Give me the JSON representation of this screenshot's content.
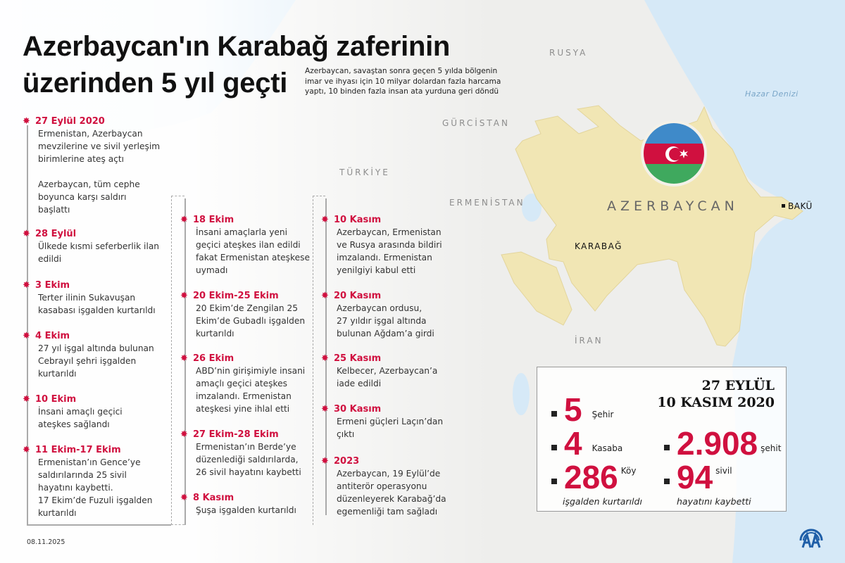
{
  "header": {
    "title_line1": "Azerbaycan'ın Karabağ zaferinin",
    "title_line2": "üzerinden 5 yıl geçti",
    "subtitle": "Azerbaycan, savaştan sonra geçen 5 yılda bölgenin imar ve ihyası için 10 milyar dolardan fazla harcama yaptı, 10 binden fazla insan ata yurduna geri döndü"
  },
  "map": {
    "labels": {
      "rusya": "RUSYA",
      "hazar": "Hazar Denizi",
      "gurcistan": "GÜRCİSTAN",
      "turkiye": "TÜRKİYE",
      "ermenistan": "ERMENİSTAN",
      "azerbaycan": "AZERBAYCAN",
      "baku": "BAKÜ",
      "karabag": "KARABAĞ",
      "iran": "İRAN"
    },
    "colors": {
      "azerbaijan": "#f1e6b4",
      "sea": "#d6e9f7",
      "flag_blue": "#3f8ac9",
      "flag_red": "#d0103f",
      "flag_green": "#3fa95e"
    }
  },
  "timeline": {
    "col1": [
      {
        "date": "27 Eylül 2020",
        "text": "Ermenistan, Azerbaycan\nmevzilerine ve sivil yerleşim\nbirimlerine ateş açtı\n\nAzerbaycan, tüm cephe\nboyunca karşı saldırı\nbaşlattı"
      },
      {
        "date": "28 Eylül",
        "text": "Ülkede kısmi seferberlik ilan\nedildi"
      },
      {
        "date": "3 Ekim",
        "text": "Terter ilinin Sukavuşan\nkasabası işgalden kurtarıldı"
      },
      {
        "date": "4 Ekim",
        "text": "27 yıl işgal altında bulunan\nCebrayıl şehri işgalden\nkurtarıldı"
      },
      {
        "date": "10 Ekim",
        "text": "İnsani amaçlı geçici\nateşkes sağlandı"
      },
      {
        "date": "11 Ekim-17 Ekim",
        "text": "Ermenistan’ın Gence’ye\nsaldırılarında 25 sivil\nhayatını kaybetti.\n17 Ekim’de Fuzuli işgalden\nkurtarıldı"
      }
    ],
    "col2": [
      {
        "date": "18 Ekim",
        "text": "İnsani amaçlarla yeni\ngeçici ateşkes ilan edildi\nfakat Ermenistan ateşkese\nuymadı"
      },
      {
        "date": "20 Ekim-25 Ekim",
        "text": "20 Ekim’de Zengilan 25\nEkim’de Gubadlı işgalden\nkurtarıldı"
      },
      {
        "date": "26 Ekim",
        "text": "ABD’nin girişimiyle insani\namaçlı geçici ateşkes\nimzalandı. Ermenistan\nateşkesi yine ihlal etti"
      },
      {
        "date": "27 Ekim-28 Ekim",
        "text": "Ermenistan’ın Berde’ye\ndüzenlediği saldırılarda,\n26 sivil hayatını kaybetti"
      },
      {
        "date": "8 Kasım",
        "text": "Şuşa işgalden kurtarıldı"
      }
    ],
    "col3": [
      {
        "date": "10 Kasım",
        "text": "Azerbaycan, Ermenistan\nve Rusya arasında bildiri\nimzalandı. Ermenistan\nyenilgiyi kabul etti"
      },
      {
        "date": "20 Kasım",
        "text": "Azerbaycan ordusu,\n27 yıldır işgal altında\nbulunan Ağdam’a girdi"
      },
      {
        "date": "25 Kasım",
        "text": "Kelbecer, Azerbaycan’a\niade edildi"
      },
      {
        "date": "30 Kasım",
        "text": "Ermeni güçleri Laçın’dan\nçıktı"
      },
      {
        "date": "2023",
        "text": "Azerbaycan, 19 Eylül’de\nantiterör operasyonu\ndüzenleyerek Karabağ’da\negemenliği tam sağladı"
      }
    ]
  },
  "stats": {
    "range_line1": "27 EYLÜL",
    "range_line2": "10 KASIM 2020",
    "sehir": {
      "value": "5",
      "label": "Şehir"
    },
    "kasaba": {
      "value": "4",
      "label": "Kasaba"
    },
    "koy": {
      "value": "286",
      "label": "Köy"
    },
    "kurtarildi": "işgalden kurtarıldı",
    "sehit": {
      "value": "2.908",
      "label": "şehit"
    },
    "sivil": {
      "value": "94",
      "label": "sivil"
    },
    "kaybetti": "hayatını kaybetti"
  },
  "footer": {
    "date": "08.11.2025",
    "logo": "AA"
  },
  "colors": {
    "accent": "#d0103f",
    "logo": "#1f5fa8"
  }
}
